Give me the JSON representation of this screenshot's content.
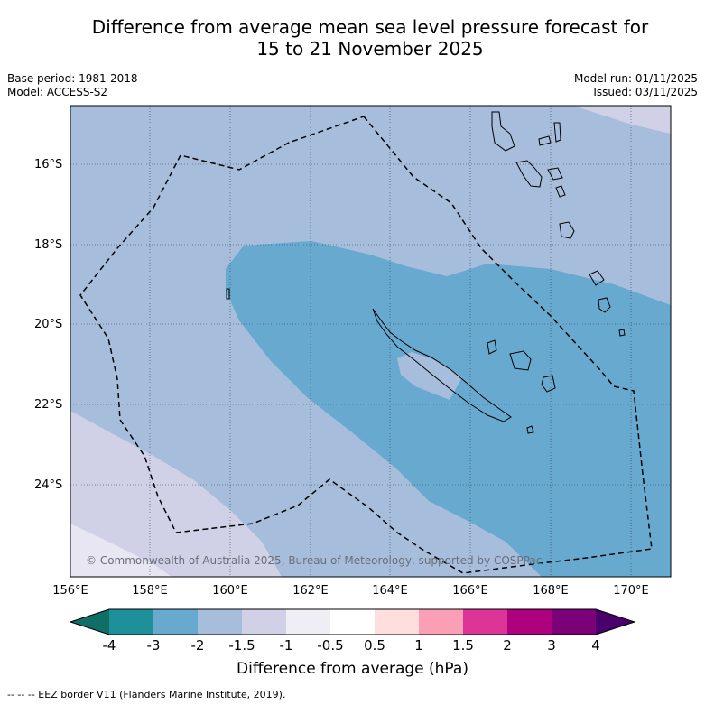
{
  "title_line1": "Difference from average mean sea level pressure forecast for",
  "title_line2": "15 to 21 November 2025",
  "base_period": "Base period: 1981-2018",
  "model": "Model: ACCESS-S2",
  "model_run": "Model run: 01/11/2025",
  "issued": "Issued: 03/11/2025",
  "lat_labels": [
    "16°S",
    "18°S",
    "20°S",
    "22°S",
    "24°S"
  ],
  "lon_labels": [
    "156°E",
    "158°E",
    "160°E",
    "162°E",
    "164°E",
    "166°E",
    "168°E",
    "170°E"
  ],
  "copyright": "© Commonwealth of Australia 2025, Bureau of Meteorology, supported by COSPPac",
  "colorbar": {
    "ticks": [
      "-4",
      "-3",
      "-2",
      "-1.5",
      "-1",
      "-0.5",
      "0.5",
      "1",
      "1.5",
      "2",
      "3",
      "4"
    ],
    "colors": [
      "#0f6e66",
      "#1d9099",
      "#67a9cf",
      "#a6bddb",
      "#d0d1e6",
      "#f0eef5",
      "#ffffff",
      "#ffdede",
      "#fa9fb5",
      "#dd3497",
      "#ae017e",
      "#7a0177",
      "#49006a"
    ],
    "title": "Difference from average (hPa)"
  },
  "footnote": "--  --  -- EEZ border V11 (Flanders Marine Institute, 2019).",
  "regions": {
    "light": "#d0d1e6",
    "medium": "#a6bddb",
    "dark": "#67a9cf"
  }
}
